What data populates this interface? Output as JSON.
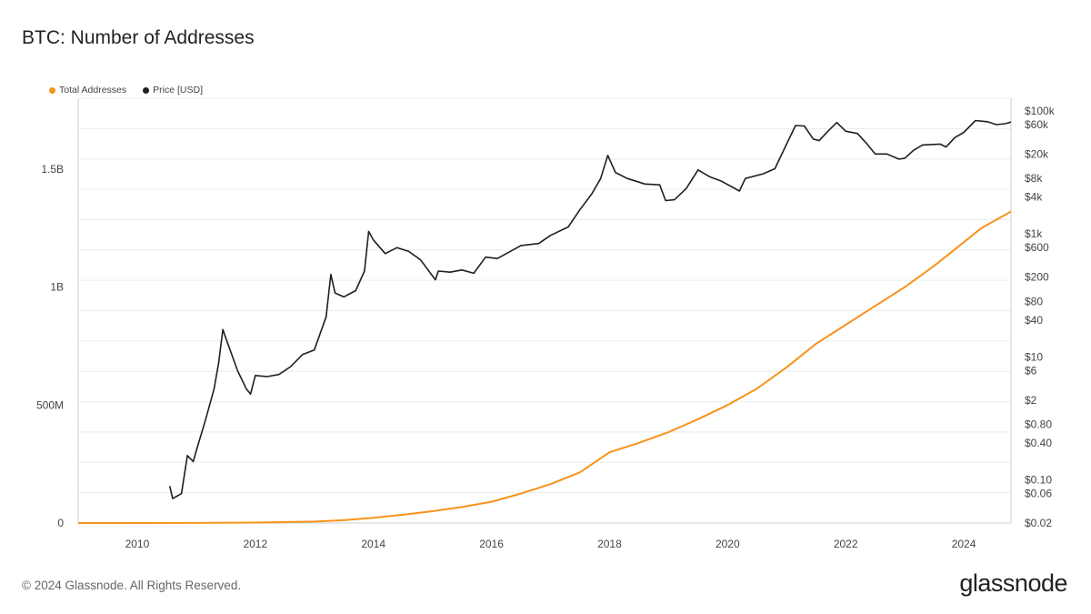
{
  "title": "BTC: Number of Addresses",
  "footer": {
    "copyright": "© 2024 Glassnode. All Rights Reserved.",
    "brand": "glassnode"
  },
  "colors": {
    "addresses": "#f7931a",
    "price": "#1f1f1f",
    "grid": "#ececec",
    "axis": "#cfcfcf"
  },
  "chart_data": {
    "type": "line",
    "title": "BTC: Number of Addresses",
    "legend_position": "top-left",
    "grid": true,
    "x_range": [
      2009.0,
      2024.8
    ],
    "x_ticks": [
      "2010",
      "2012",
      "2014",
      "2016",
      "2018",
      "2020",
      "2022",
      "2024"
    ],
    "y_left": {
      "range": [
        0,
        1800000000
      ],
      "ticks": [
        {
          "value": 0,
          "label": "0"
        },
        {
          "value": 500000000,
          "label": "500M"
        },
        {
          "value": 1000000000,
          "label": "1B"
        },
        {
          "value": 1500000000,
          "label": "1.5B"
        }
      ]
    },
    "y_right": {
      "scale": "log",
      "range": [
        0.02,
        100000
      ],
      "ticks": [
        {
          "value": 100000,
          "label": "$100k"
        },
        {
          "value": 60000,
          "label": "$60k"
        },
        {
          "value": 20000,
          "label": "$20k"
        },
        {
          "value": 8000,
          "label": "$8k"
        },
        {
          "value": 4000,
          "label": "$4k"
        },
        {
          "value": 1000,
          "label": "$1k"
        },
        {
          "value": 600,
          "label": "$600"
        },
        {
          "value": 200,
          "label": "$200"
        },
        {
          "value": 80,
          "label": "$80"
        },
        {
          "value": 40,
          "label": "$40"
        },
        {
          "value": 10,
          "label": "$10"
        },
        {
          "value": 6,
          "label": "$6"
        },
        {
          "value": 2,
          "label": "$2"
        },
        {
          "value": 0.8,
          "label": "$0.80"
        },
        {
          "value": 0.4,
          "label": "$0.40"
        },
        {
          "value": 0.1,
          "label": "$0.10"
        },
        {
          "value": 0.06,
          "label": "$0.06"
        },
        {
          "value": 0.02,
          "label": "$0.02"
        }
      ]
    },
    "series": [
      {
        "name": "Total Addresses",
        "axis": "left",
        "points": [
          [
            2009.0,
            0
          ],
          [
            2011.0,
            200000
          ],
          [
            2012.0,
            2000000
          ],
          [
            2013.0,
            6000000
          ],
          [
            2013.5,
            12000000
          ],
          [
            2014.0,
            22000000
          ],
          [
            2014.5,
            35000000
          ],
          [
            2015.0,
            50000000
          ],
          [
            2015.5,
            68000000
          ],
          [
            2016.0,
            90000000
          ],
          [
            2016.5,
            125000000
          ],
          [
            2017.0,
            165000000
          ],
          [
            2017.5,
            215000000
          ],
          [
            2018.0,
            300000000
          ],
          [
            2018.5,
            340000000
          ],
          [
            2019.0,
            385000000
          ],
          [
            2019.5,
            440000000
          ],
          [
            2020.0,
            500000000
          ],
          [
            2020.5,
            570000000
          ],
          [
            2021.0,
            660000000
          ],
          [
            2021.5,
            760000000
          ],
          [
            2022.0,
            840000000
          ],
          [
            2022.5,
            920000000
          ],
          [
            2023.0,
            1000000000
          ],
          [
            2023.5,
            1090000000
          ],
          [
            2024.0,
            1190000000
          ],
          [
            2024.3,
            1250000000
          ],
          [
            2024.8,
            1320000000
          ]
        ]
      },
      {
        "name": "Price [USD]",
        "axis": "right",
        "points": [
          [
            2010.55,
            0.08
          ],
          [
            2010.6,
            0.05
          ],
          [
            2010.75,
            0.06
          ],
          [
            2010.85,
            0.25
          ],
          [
            2010.95,
            0.2
          ],
          [
            2011.0,
            0.3
          ],
          [
            2011.15,
            0.9
          ],
          [
            2011.3,
            3
          ],
          [
            2011.38,
            8
          ],
          [
            2011.45,
            28
          ],
          [
            2011.55,
            15
          ],
          [
            2011.7,
            6
          ],
          [
            2011.85,
            3
          ],
          [
            2011.92,
            2.5
          ],
          [
            2012.0,
            5
          ],
          [
            2012.2,
            4.8
          ],
          [
            2012.4,
            5.2
          ],
          [
            2012.6,
            7
          ],
          [
            2012.8,
            11
          ],
          [
            2013.0,
            13
          ],
          [
            2013.2,
            45
          ],
          [
            2013.28,
            220
          ],
          [
            2013.35,
            110
          ],
          [
            2013.5,
            95
          ],
          [
            2013.7,
            120
          ],
          [
            2013.85,
            250
          ],
          [
            2013.92,
            1100
          ],
          [
            2014.0,
            800
          ],
          [
            2014.2,
            480
          ],
          [
            2014.4,
            600
          ],
          [
            2014.6,
            520
          ],
          [
            2014.8,
            380
          ],
          [
            2015.05,
            180
          ],
          [
            2015.1,
            250
          ],
          [
            2015.3,
            240
          ],
          [
            2015.5,
            260
          ],
          [
            2015.7,
            230
          ],
          [
            2015.9,
            420
          ],
          [
            2016.1,
            400
          ],
          [
            2016.5,
            650
          ],
          [
            2016.8,
            700
          ],
          [
            2017.0,
            950
          ],
          [
            2017.3,
            1300
          ],
          [
            2017.5,
            2500
          ],
          [
            2017.7,
            4500
          ],
          [
            2017.85,
            8000
          ],
          [
            2017.97,
            19000
          ],
          [
            2018.1,
            10000
          ],
          [
            2018.3,
            8000
          ],
          [
            2018.6,
            6500
          ],
          [
            2018.85,
            6300
          ],
          [
            2018.95,
            3500
          ],
          [
            2019.1,
            3600
          ],
          [
            2019.3,
            5500
          ],
          [
            2019.5,
            11000
          ],
          [
            2019.7,
            8500
          ],
          [
            2019.9,
            7200
          ],
          [
            2020.2,
            5000
          ],
          [
            2020.3,
            8000
          ],
          [
            2020.6,
            9500
          ],
          [
            2020.8,
            11500
          ],
          [
            2021.0,
            29000
          ],
          [
            2021.15,
            58000
          ],
          [
            2021.3,
            57000
          ],
          [
            2021.45,
            35000
          ],
          [
            2021.55,
            33000
          ],
          [
            2021.7,
            47000
          ],
          [
            2021.85,
            65000
          ],
          [
            2022.0,
            47000
          ],
          [
            2022.2,
            43000
          ],
          [
            2022.35,
            30000
          ],
          [
            2022.5,
            20000
          ],
          [
            2022.7,
            20000
          ],
          [
            2022.9,
            16500
          ],
          [
            2023.0,
            17000
          ],
          [
            2023.15,
            23000
          ],
          [
            2023.3,
            28000
          ],
          [
            2023.6,
            29000
          ],
          [
            2023.7,
            26000
          ],
          [
            2023.85,
            37000
          ],
          [
            2024.0,
            45000
          ],
          [
            2024.2,
            70000
          ],
          [
            2024.4,
            67000
          ],
          [
            2024.55,
            60000
          ],
          [
            2024.7,
            62000
          ],
          [
            2024.8,
            66000
          ]
        ]
      }
    ]
  }
}
